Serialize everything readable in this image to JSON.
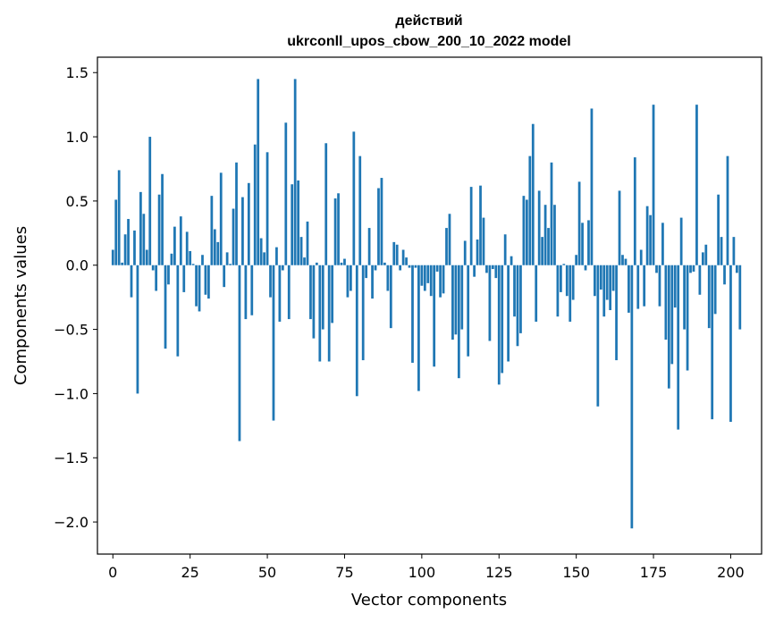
{
  "chart_data": {
    "type": "bar",
    "title": "действий",
    "subtitle": "ukrconll_upos_cbow_200_10_2022 model",
    "xlabel": "Vector components",
    "ylabel": "Components values",
    "xlim": [
      -5,
      210
    ],
    "ylim": [
      -2.25,
      1.62
    ],
    "xticks": [
      0,
      25,
      50,
      75,
      100,
      125,
      150,
      175,
      200
    ],
    "yticks": [
      -2.0,
      -1.5,
      -1.0,
      -0.5,
      0.0,
      0.5,
      1.0,
      1.5
    ],
    "ytick_labels": [
      "−2.0",
      "−1.5",
      "−1.0",
      "−0.5",
      "0.0",
      "0.5",
      "1.0",
      "1.5"
    ],
    "bar_color": "#1f77b4",
    "grid": false,
    "legend": "none",
    "x_start": 0,
    "values": [
      0.12,
      0.51,
      0.74,
      0.02,
      0.24,
      0.36,
      -0.25,
      0.27,
      -1.0,
      0.57,
      0.4,
      0.12,
      1.0,
      -0.04,
      -0.2,
      0.55,
      0.71,
      -0.65,
      -0.15,
      0.09,
      0.3,
      -0.71,
      0.38,
      -0.21,
      0.26,
      0.11,
      0.01,
      -0.32,
      -0.36,
      0.08,
      -0.23,
      -0.26,
      0.54,
      0.28,
      0.18,
      0.72,
      -0.17,
      0.1,
      0.01,
      0.44,
      0.8,
      -1.37,
      0.53,
      -0.42,
      0.64,
      -0.39,
      0.94,
      1.45,
      0.21,
      0.1,
      0.88,
      -0.25,
      -1.21,
      0.14,
      -0.44,
      -0.04,
      1.11,
      -0.42,
      0.63,
      1.45,
      0.66,
      0.22,
      0.06,
      0.34,
      -0.42,
      -0.57,
      0.02,
      -0.75,
      -0.5,
      0.95,
      -0.75,
      -0.45,
      0.52,
      0.56,
      0.02,
      0.05,
      -0.25,
      -0.2,
      1.04,
      -1.02,
      0.85,
      -0.74,
      -0.1,
      0.29,
      -0.26,
      -0.04,
      0.6,
      0.68,
      0.02,
      -0.2,
      -0.49,
      0.18,
      0.16,
      -0.04,
      0.12,
      0.06,
      -0.02,
      -0.76,
      -0.02,
      -0.98,
      -0.16,
      -0.2,
      -0.14,
      -0.24,
      -0.79,
      -0.05,
      -0.25,
      -0.22,
      0.29,
      0.4,
      -0.58,
      -0.54,
      -0.88,
      -0.5,
      0.19,
      -0.71,
      0.61,
      -0.09,
      0.2,
      0.62,
      0.37,
      -0.06,
      -0.59,
      -0.03,
      -0.1,
      -0.93,
      -0.84,
      0.24,
      -0.75,
      0.07,
      -0.4,
      -0.63,
      -0.53,
      0.54,
      0.51,
      0.85,
      1.1,
      -0.44,
      0.58,
      0.22,
      0.47,
      0.29,
      0.8,
      0.47,
      -0.4,
      -0.21,
      0.01,
      -0.24,
      -0.44,
      -0.27,
      0.08,
      0.65,
      0.33,
      -0.04,
      0.35,
      1.22,
      -0.24,
      -1.1,
      -0.19,
      -0.4,
      -0.27,
      -0.35,
      -0.2,
      -0.74,
      0.58,
      0.08,
      0.05,
      -0.37,
      -2.05,
      0.84,
      -0.34,
      0.12,
      -0.32,
      0.46,
      0.39,
      1.25,
      -0.06,
      -0.32,
      0.33,
      -0.58,
      -0.96,
      -0.77,
      -0.33,
      -1.28,
      0.37,
      -0.5,
      -0.82,
      -0.06,
      -0.05,
      1.25,
      -0.23,
      0.1,
      0.16,
      -0.49,
      -1.2,
      -0.38,
      0.55,
      0.22,
      -0.15,
      0.85,
      -1.22,
      0.22,
      -0.06,
      -0.5
    ]
  }
}
